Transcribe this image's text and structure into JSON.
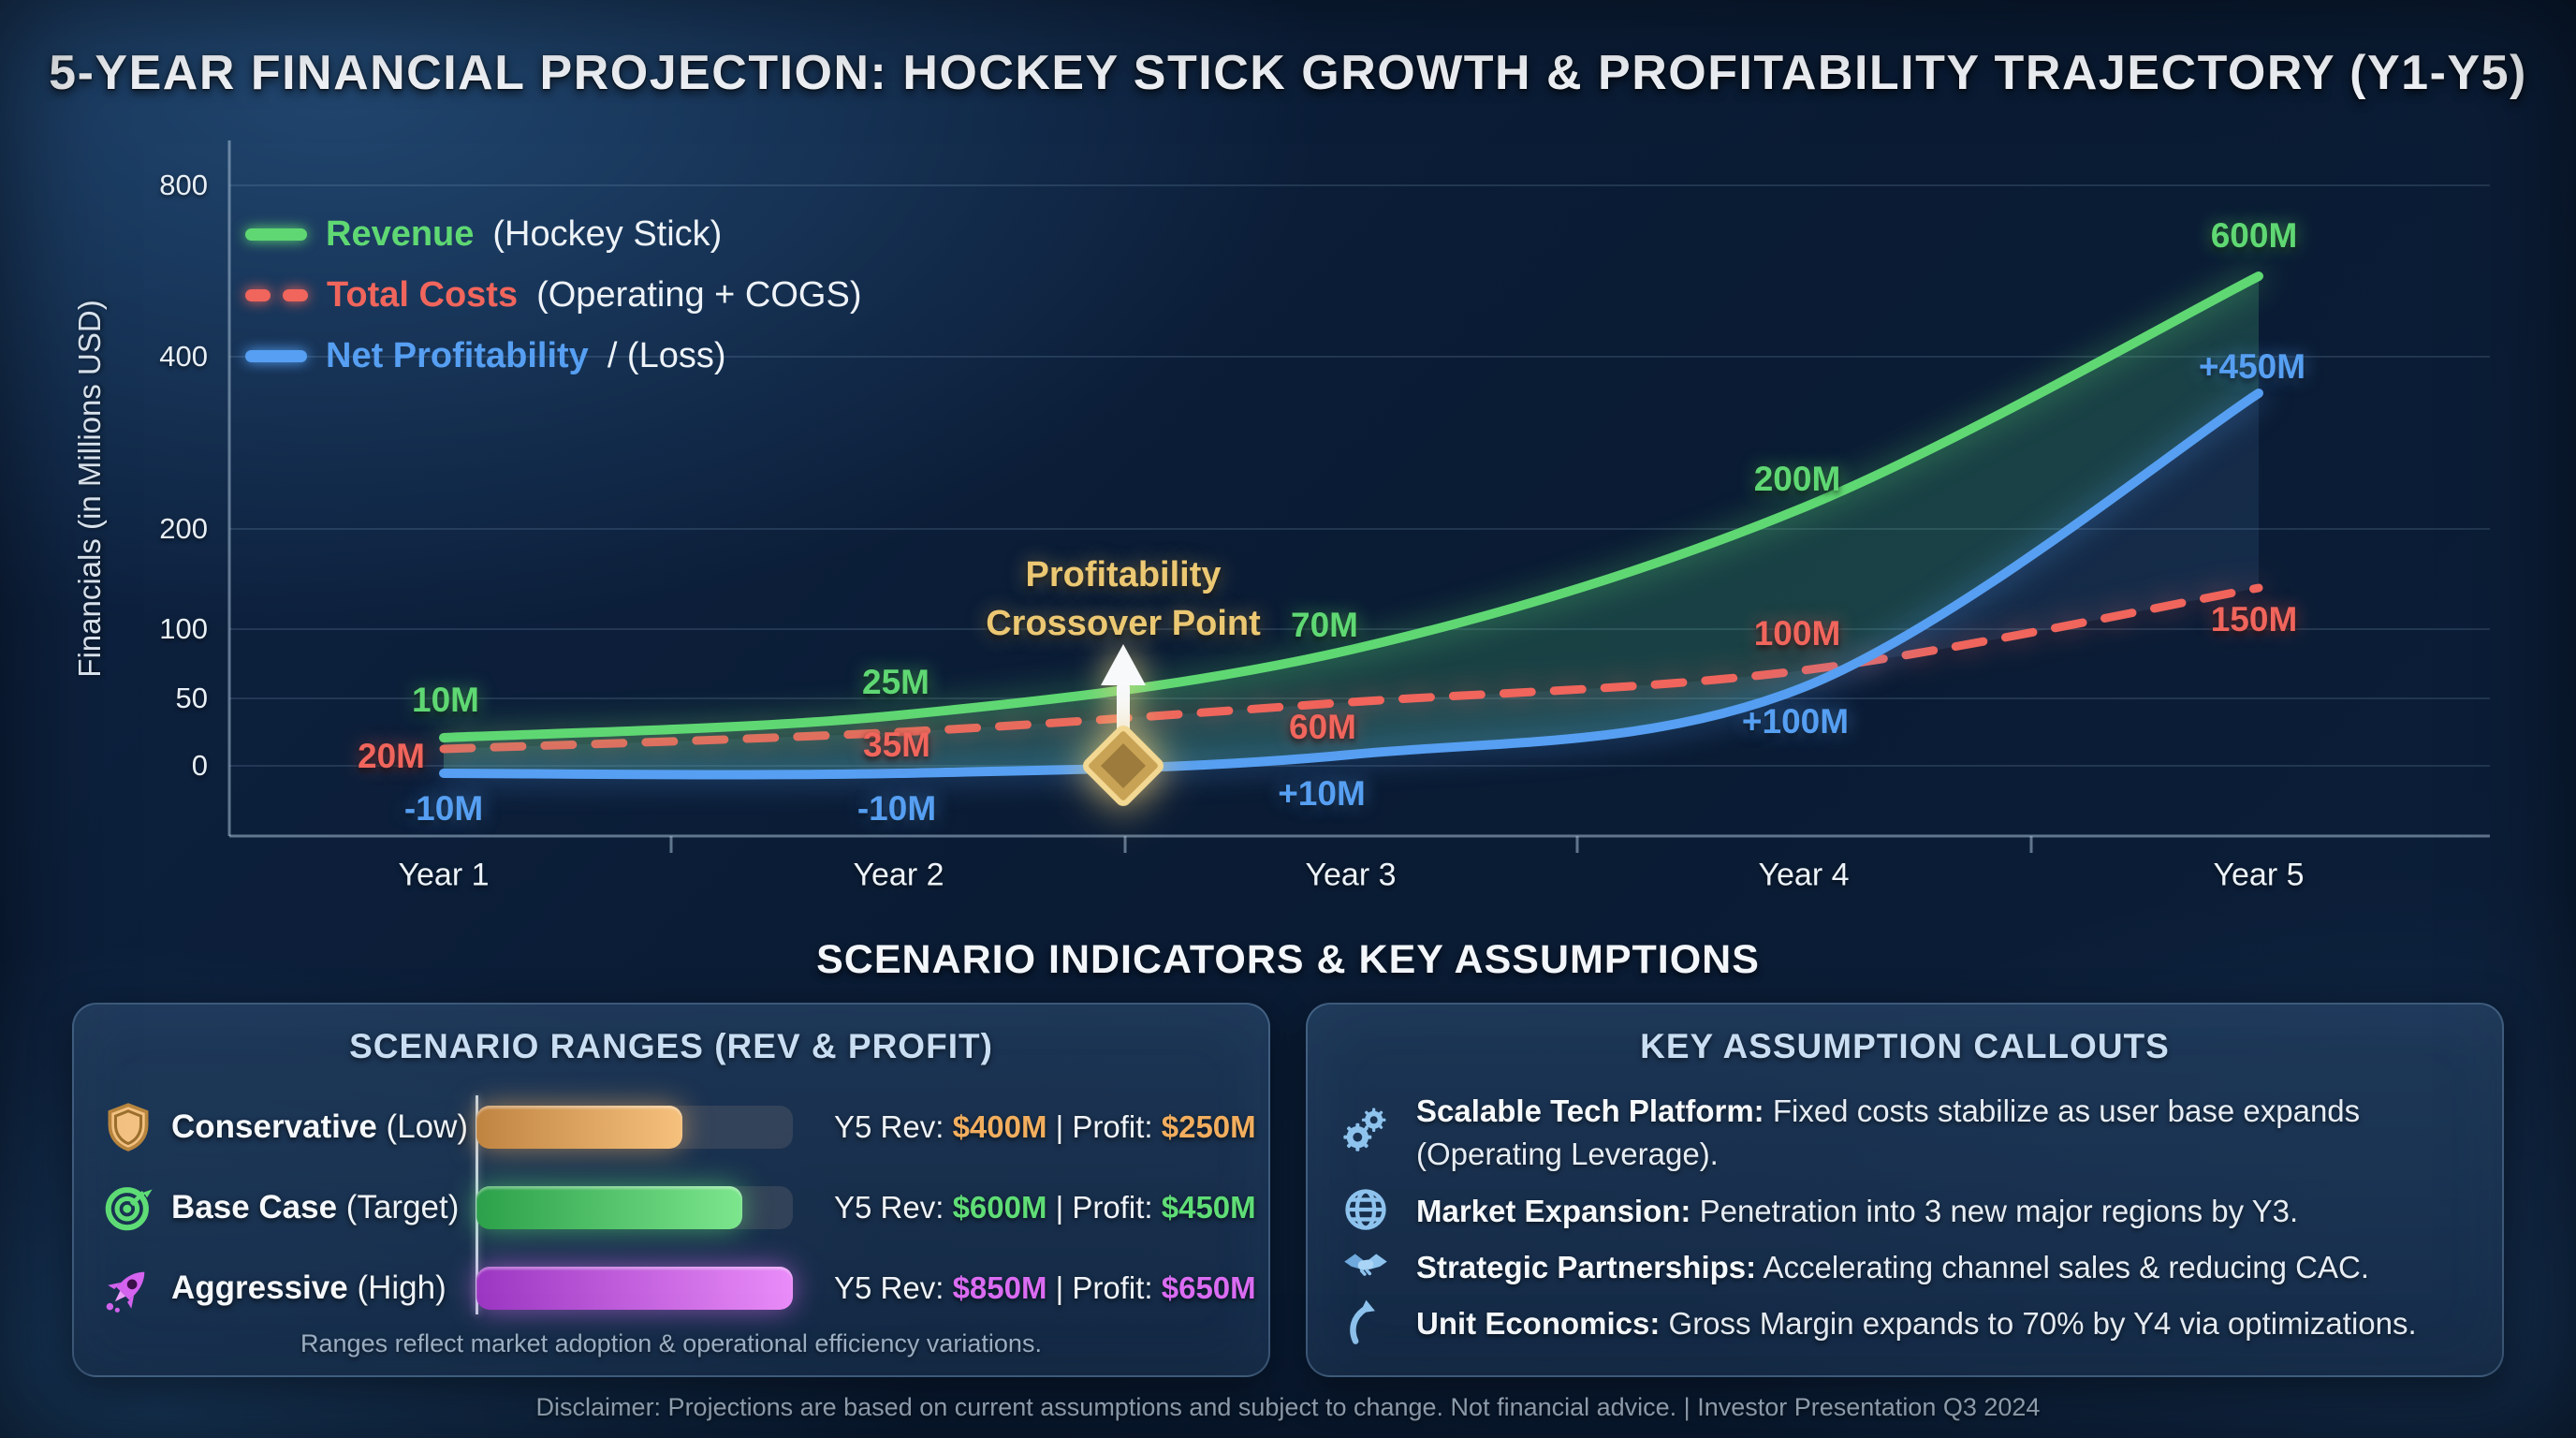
{
  "title": "5-YEAR FINANCIAL PROJECTION: HOCKEY STICK GROWTH & PROFITABILITY TRAJECTORY (Y1-Y5)",
  "chart": {
    "y_axis_label": "Financials (in Millions USD)",
    "y_ticks": [
      "800",
      "400",
      "200",
      "100",
      "50",
      "0"
    ],
    "x_labels": [
      "Year 1",
      "Year 2",
      "Year 3",
      "Year 4",
      "Year 5"
    ],
    "legend": [
      {
        "name": "Revenue",
        "suffix": " (Hockey Stick)",
        "style": "solid",
        "series": "revenue"
      },
      {
        "name": "Total Costs",
        "suffix": " (Operating + COGS)",
        "style": "dashed",
        "series": "costs"
      },
      {
        "name": "Net Profitability",
        "suffix": " / (Loss)",
        "style": "solid",
        "series": "profit"
      }
    ],
    "annotation": {
      "line1": "Profitability",
      "line2": "Crossover Point"
    },
    "point_labels": {
      "revenue": [
        "10M",
        "25M",
        "70M",
        "200M",
        "600M"
      ],
      "costs": [
        "20M",
        "35M",
        "60M",
        "100M",
        "150M"
      ],
      "profit": [
        "-10M",
        "-10M",
        "+10M",
        "+100M",
        "+450M"
      ]
    }
  },
  "chart_data": {
    "type": "line",
    "title": "5-Year Financial Projection: Hockey Stick Growth & Profitability Trajectory (Y1-Y5)",
    "x": [
      "Year 1",
      "Year 2",
      "Year 3",
      "Year 4",
      "Year 5"
    ],
    "series": [
      {
        "name": "Revenue (Hockey Stick)",
        "values": [
          10,
          25,
          70,
          200,
          600
        ],
        "color": "#5fd873",
        "style": "solid"
      },
      {
        "name": "Total Costs (Operating + COGS)",
        "values": [
          20,
          35,
          60,
          100,
          150
        ],
        "color": "#f0655c",
        "style": "dashed"
      },
      {
        "name": "Net Profitability / (Loss)",
        "values": [
          -10,
          -10,
          10,
          100,
          450
        ],
        "color": "#569ff2",
        "style": "solid"
      }
    ],
    "xlabel": "",
    "ylabel": "Financials (in Millions USD)",
    "y_ticks": [
      0,
      50,
      100,
      200,
      400,
      800
    ],
    "ylim": [
      -20,
      800
    ],
    "grid": true,
    "legend_position": "upper left",
    "annotations": [
      "Profitability Crossover Point marked with gold diamond at breakeven (0) between Year 2 and Year 3"
    ]
  },
  "section_header": "SCENARIO INDICATORS & KEY ASSUMPTIONS",
  "scenario_panel": {
    "title": "SCENARIO RANGES (REV & PROFIT)",
    "rev_prefix": "Y5 Rev: ",
    "profit_prefix": " | Profit: ",
    "rows": [
      {
        "icon": "shield-icon",
        "name": "Conservative",
        "qualifier": " (Low)",
        "rev": "$400M",
        "profit": "$250M",
        "color": "#f2ae5e",
        "bar_from": "#c08441",
        "bar_to": "#f6c17d",
        "bar_pct": 65
      },
      {
        "icon": "target-icon",
        "name": "Base Case",
        "qualifier": " (Target)",
        "rev": "$600M",
        "profit": "$450M",
        "color": "#5fdd76",
        "bar_from": "#2ca04a",
        "bar_to": "#7ce68d",
        "bar_pct": 84
      },
      {
        "icon": "rocket-icon",
        "name": "Aggressive",
        "qualifier": " (High)",
        "rev": "$850M",
        "profit": "$650M",
        "color": "#da6cf2",
        "bar_from": "#9b36c2",
        "bar_to": "#ea8cf9",
        "bar_pct": 100
      }
    ],
    "caption": "Ranges reflect market adoption & operational efficiency variations."
  },
  "assumptions_panel": {
    "title": "KEY ASSUMPTION CALLOUTS",
    "items": [
      {
        "icon": "gears-icon",
        "lead": "Scalable Tech Platform:",
        "text": " Fixed costs stabilize as user base expands (Operating Leverage)."
      },
      {
        "icon": "globe-icon",
        "lead": "Market Expansion:",
        "text": " Penetration into 3 new major regions by Y3."
      },
      {
        "icon": "handshake-icon",
        "lead": "Strategic Partnerships:",
        "text": " Accelerating channel sales & reducing CAC."
      },
      {
        "icon": "arrow-up-icon",
        "lead": "Unit Economics:",
        "text": " Gross Margin expands to 70% by Y4 via optimizations."
      }
    ]
  },
  "footer": "Disclaimer: Projections are based on current assumptions and subject to change. Not financial advice. | Investor Presentation Q3 2024",
  "colors": {
    "revenue": "#5fd873",
    "costs": "#f0655c",
    "profit": "#569ff2",
    "gold": "#ecc873",
    "panel_header": "#c9def2",
    "icon_blue": "#8ec3ee"
  }
}
